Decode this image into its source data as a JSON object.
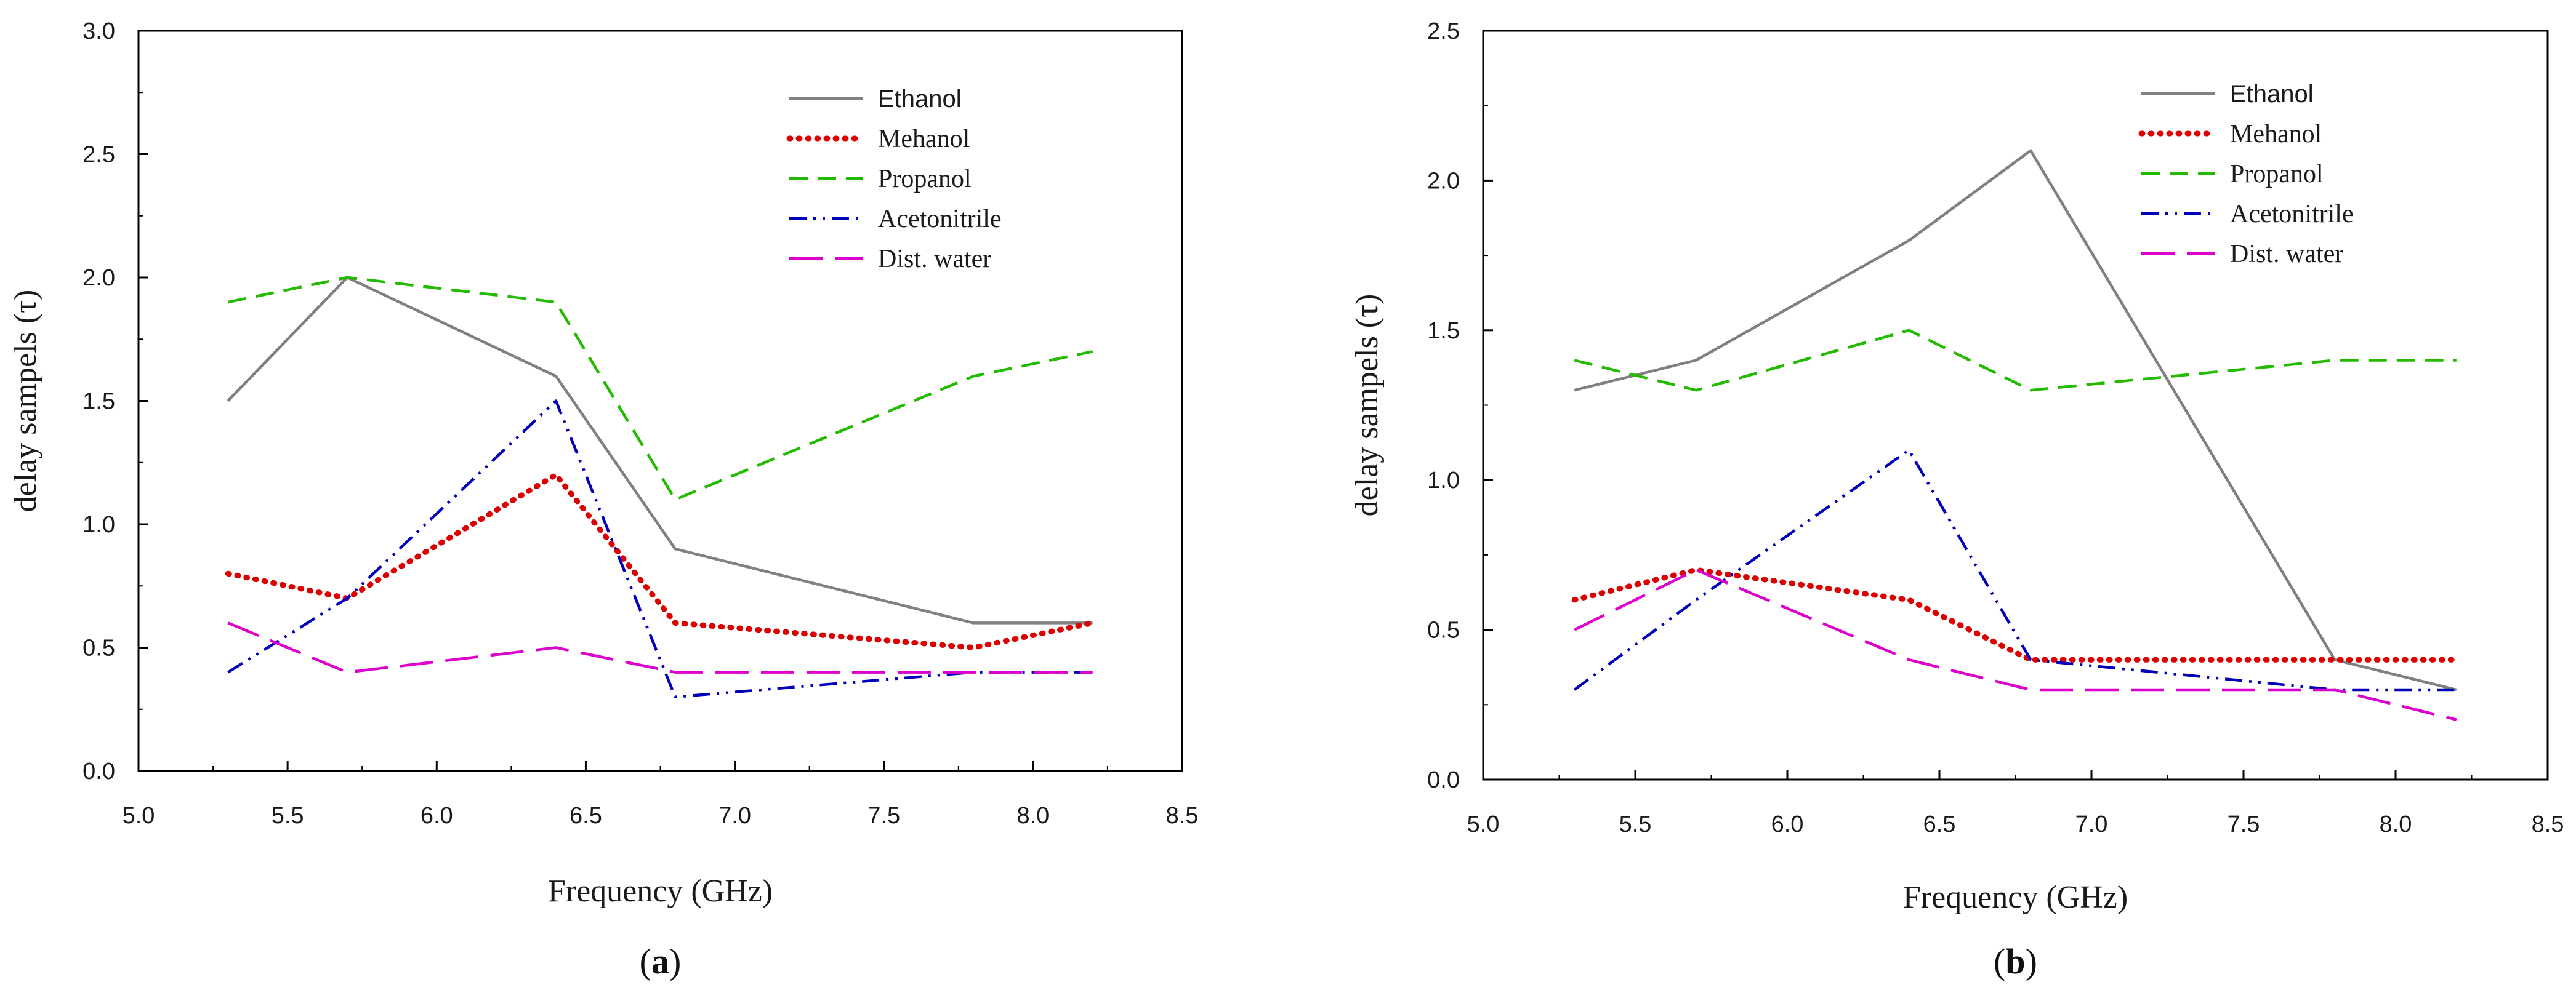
{
  "chart_data": [
    {
      "type": "line",
      "panel_label": "a",
      "caption_open": "(",
      "caption_close": ")",
      "xlabel": "Frequency (GHz)",
      "ylabel": "delay sampels (τ)",
      "xlim": [
        5.0,
        8.5
      ],
      "ylim": [
        0.0,
        3.0
      ],
      "xticks": [
        "5.0",
        "5.5",
        "6.0",
        "6.5",
        "7.0",
        "7.5",
        "8.0",
        "8.5"
      ],
      "yticks": [
        "0.0",
        "0.5",
        "1.0",
        "1.5",
        "2.0",
        "2.5",
        "3.0"
      ],
      "legend_position": "top-right",
      "x": [
        5.3,
        5.7,
        6.4,
        6.8,
        7.8,
        8.2
      ],
      "series": [
        {
          "name": "Ethanol",
          "color": "#808080",
          "style": "solid",
          "values": [
            1.5,
            2.0,
            1.6,
            0.9,
            0.6,
            0.6
          ]
        },
        {
          "name": "Mehanol",
          "color": "#dd0000",
          "style": "dotted",
          "values": [
            0.8,
            0.7,
            1.2,
            0.6,
            0.5,
            0.6
          ]
        },
        {
          "name": "Propanol",
          "color": "#22bb00",
          "style": "dashed",
          "values": [
            1.9,
            2.0,
            1.9,
            1.1,
            1.6,
            1.7
          ]
        },
        {
          "name": "Acetonitrile",
          "color": "#0000bb",
          "style": "dashdotdot",
          "values": [
            0.4,
            0.7,
            1.5,
            0.3,
            0.4,
            0.4
          ]
        },
        {
          "name": "Dist. water",
          "color": "#dd00cc",
          "style": "longdash",
          "values": [
            0.6,
            0.4,
            0.5,
            0.4,
            0.4,
            0.4
          ]
        }
      ]
    },
    {
      "type": "line",
      "panel_label": "b",
      "caption_open": "(",
      "caption_close": ")",
      "xlabel": "Frequency (GHz)",
      "ylabel": "delay sampels (τ)",
      "xlim": [
        5.0,
        8.5
      ],
      "ylim": [
        0.0,
        2.5
      ],
      "xticks": [
        "5.0",
        "5.5",
        "6.0",
        "6.5",
        "7.0",
        "7.5",
        "8.0",
        "8.5"
      ],
      "yticks": [
        "0.0",
        "0.5",
        "1.0",
        "1.5",
        "2.0",
        "2.5"
      ],
      "legend_position": "top-right",
      "x": [
        5.3,
        5.7,
        6.4,
        6.8,
        7.8,
        8.2
      ],
      "series": [
        {
          "name": "Ethanol",
          "color": "#808080",
          "style": "solid",
          "values": [
            1.3,
            1.4,
            1.8,
            2.1,
            0.4,
            0.3
          ]
        },
        {
          "name": "Mehanol",
          "color": "#dd0000",
          "style": "dotted",
          "values": [
            0.6,
            0.7,
            0.6,
            0.4,
            0.4,
            0.4
          ]
        },
        {
          "name": "Propanol",
          "color": "#22bb00",
          "style": "dashed",
          "values": [
            1.4,
            1.3,
            1.5,
            1.3,
            1.4,
            1.4
          ]
        },
        {
          "name": "Acetonitrile",
          "color": "#0000bb",
          "style": "dashdotdot",
          "values": [
            0.3,
            0.6,
            1.1,
            0.4,
            0.3,
            0.3
          ]
        },
        {
          "name": "Dist. water",
          "color": "#dd00cc",
          "style": "longdash",
          "values": [
            0.5,
            0.7,
            0.4,
            0.3,
            0.3,
            0.2
          ]
        }
      ]
    }
  ]
}
